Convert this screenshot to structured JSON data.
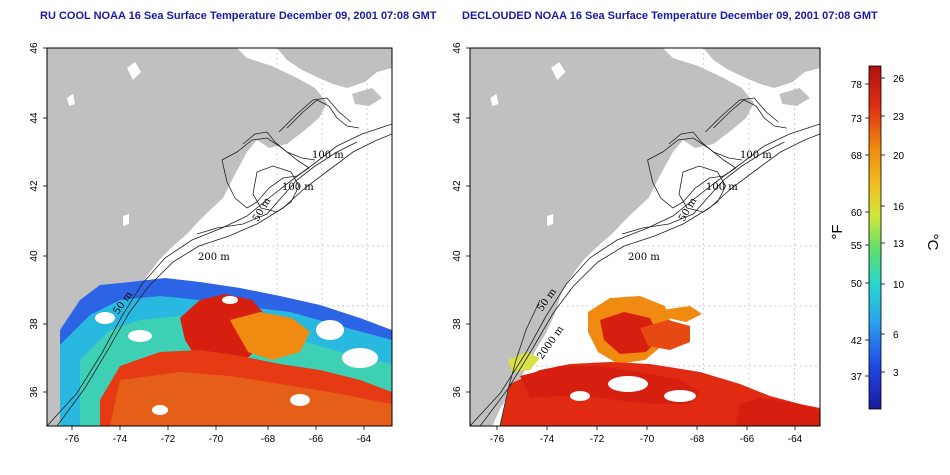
{
  "panels": [
    {
      "title": "RU COOL NOAA 16 Sea Surface Temperature December 09, 2001 07:08 GMT",
      "contour_labels": [
        "100 m",
        "100 m",
        "50 m",
        "200 m",
        "50 m"
      ]
    },
    {
      "title": "DECLOUDED NOAA 16 Sea Surface Temperature December 09, 2001 07:08 GMT",
      "contour_labels": [
        "100 m",
        "100 m",
        "50 m",
        "200 m",
        "50 m",
        "2000 m"
      ]
    }
  ],
  "axes": {
    "x_ticks": [
      "-76",
      "-74",
      "-72",
      "-70",
      "-68",
      "-66",
      "-64"
    ],
    "y_ticks": [
      "46",
      "44",
      "42",
      "40",
      "38",
      "36"
    ]
  },
  "colorbar": {
    "fahrenheit_unit": "°F",
    "celsius_unit": "°C",
    "fahrenheit_ticks": [
      "78",
      "73",
      "68",
      "60",
      "55",
      "50",
      "42",
      "37"
    ],
    "celsius_ticks": [
      "26",
      "23",
      "20",
      "16",
      "13",
      "10",
      "6",
      "3"
    ]
  },
  "colors": {
    "land": "#c0c0c0",
    "title": "#1a1aa6",
    "warm": "#d71f10",
    "cold": "#1133cc"
  }
}
